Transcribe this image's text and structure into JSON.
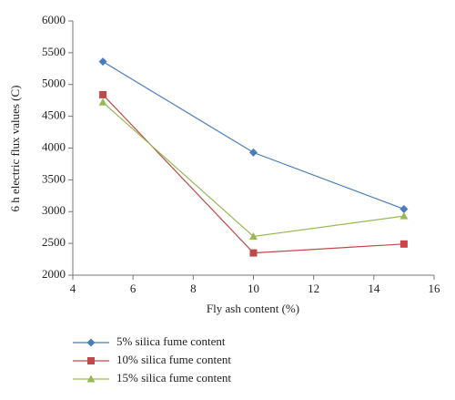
{
  "chart_data": {
    "type": "line",
    "x_label": "Fly ash content (%)",
    "y_label": "6 h electric flux values (C)",
    "x": [
      5,
      10,
      15
    ],
    "series": [
      {
        "name": "5% silica fume content",
        "color": "#4a7ebb",
        "marker": "diamond",
        "values": [
          5360,
          3930,
          3040
        ]
      },
      {
        "name": "10% silica fume content",
        "color": "#be4b48",
        "marker": "square",
        "values": [
          4840,
          2350,
          2490
        ]
      },
      {
        "name": "15% silica fume content",
        "color": "#98b954",
        "marker": "triangle",
        "values": [
          4720,
          2610,
          2930
        ]
      }
    ],
    "xlim": [
      4,
      16
    ],
    "xticks": [
      4,
      6,
      8,
      10,
      12,
      14,
      16
    ],
    "ylim": [
      2000,
      6000
    ],
    "yticks": [
      2000,
      2500,
      3000,
      3500,
      4000,
      4500,
      5000,
      5500,
      6000
    ],
    "grid": false,
    "legend": "bottom"
  }
}
